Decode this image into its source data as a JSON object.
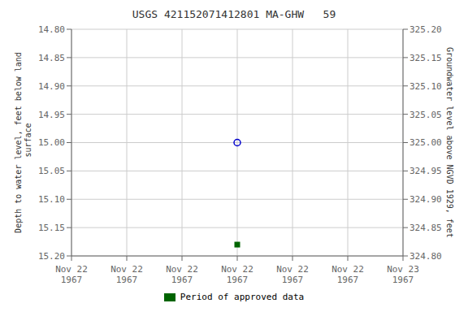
{
  "chart_data": {
    "type": "scatter",
    "title": "USGS 421152071412801 MA-GHW   59",
    "ylabel": "Depth to water level, feet below land\n surface",
    "y2label": "Groundwater level above NGVD 1929, feet",
    "categories": [
      "Nov 22\n1967",
      "Nov 22\n1967",
      "Nov 22\n1967",
      "Nov 22\n1967",
      "Nov 22\n1967",
      "Nov 22\n1967",
      "Nov 23\n1967"
    ],
    "series": [
      {
        "color": "#0000cc",
        "marker": "open_circle",
        "values": [
          null,
          null,
          null,
          15,
          null,
          null,
          null
        ]
      },
      {
        "name": "Period of approved data",
        "color": "#006400",
        "marker": "square",
        "values": [
          null,
          null,
          null,
          15.18,
          null,
          null,
          null
        ]
      }
    ],
    "ylim": [
      15.2,
      14.8
    ],
    "yticks": [
      {
        "value": 14.8,
        "label": "14.80"
      },
      {
        "value": 14.85,
        "label": "14.85"
      },
      {
        "value": 14.9,
        "label": "14.90"
      },
      {
        "value": 14.95,
        "label": "14.95"
      },
      {
        "value": 15,
        "label": "15.00"
      },
      {
        "value": 15.05,
        "label": "15.05"
      },
      {
        "value": 15.1,
        "label": "15.10"
      },
      {
        "value": 15.15,
        "label": "15.15"
      },
      {
        "value": 15.2,
        "label": "15.20"
      }
    ],
    "y2lim": [
      324.8,
      325.2
    ],
    "y2ticks": [
      {
        "value": 325.2,
        "label": "325.20"
      },
      {
        "value": 325.15,
        "label": "325.15"
      },
      {
        "value": 325.1,
        "label": "325.10"
      },
      {
        "value": 325.05,
        "label": "325.05"
      },
      {
        "value": 325,
        "label": "325.00"
      },
      {
        "value": 324.95,
        "label": "324.95"
      },
      {
        "value": 324.9,
        "label": "324.90"
      },
      {
        "value": 324.85,
        "label": "324.85"
      },
      {
        "value": 324.8,
        "label": "324.80"
      }
    ],
    "grid": true,
    "legend": "bottom"
  }
}
